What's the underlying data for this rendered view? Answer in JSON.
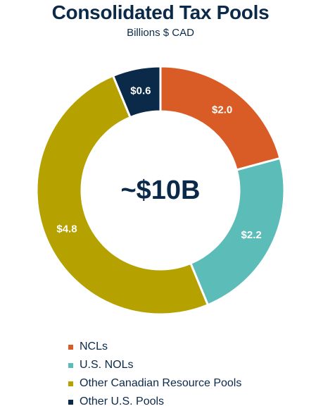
{
  "chart_data": {
    "type": "pie",
    "title": "Consolidated Tax Pools",
    "subtitle": "Billions $ CAD",
    "center_label": "~$10B",
    "series": [
      {
        "name": "NCLs",
        "value": 2.0,
        "label": "$2.0",
        "color": "#d95b26"
      },
      {
        "name": "U.S. NOLs",
        "value": 2.2,
        "label": "$2.2",
        "color": "#5cbcb8"
      },
      {
        "name": "Other Canadian Resource Pools",
        "value": 4.8,
        "label": "$4.8",
        "color": "#b5a100"
      },
      {
        "name": "Other U.S. Pools",
        "value": 0.6,
        "label": "$0.6",
        "color": "#0b2a4a"
      }
    ],
    "legend_position": "bottom-left",
    "donut": true
  }
}
